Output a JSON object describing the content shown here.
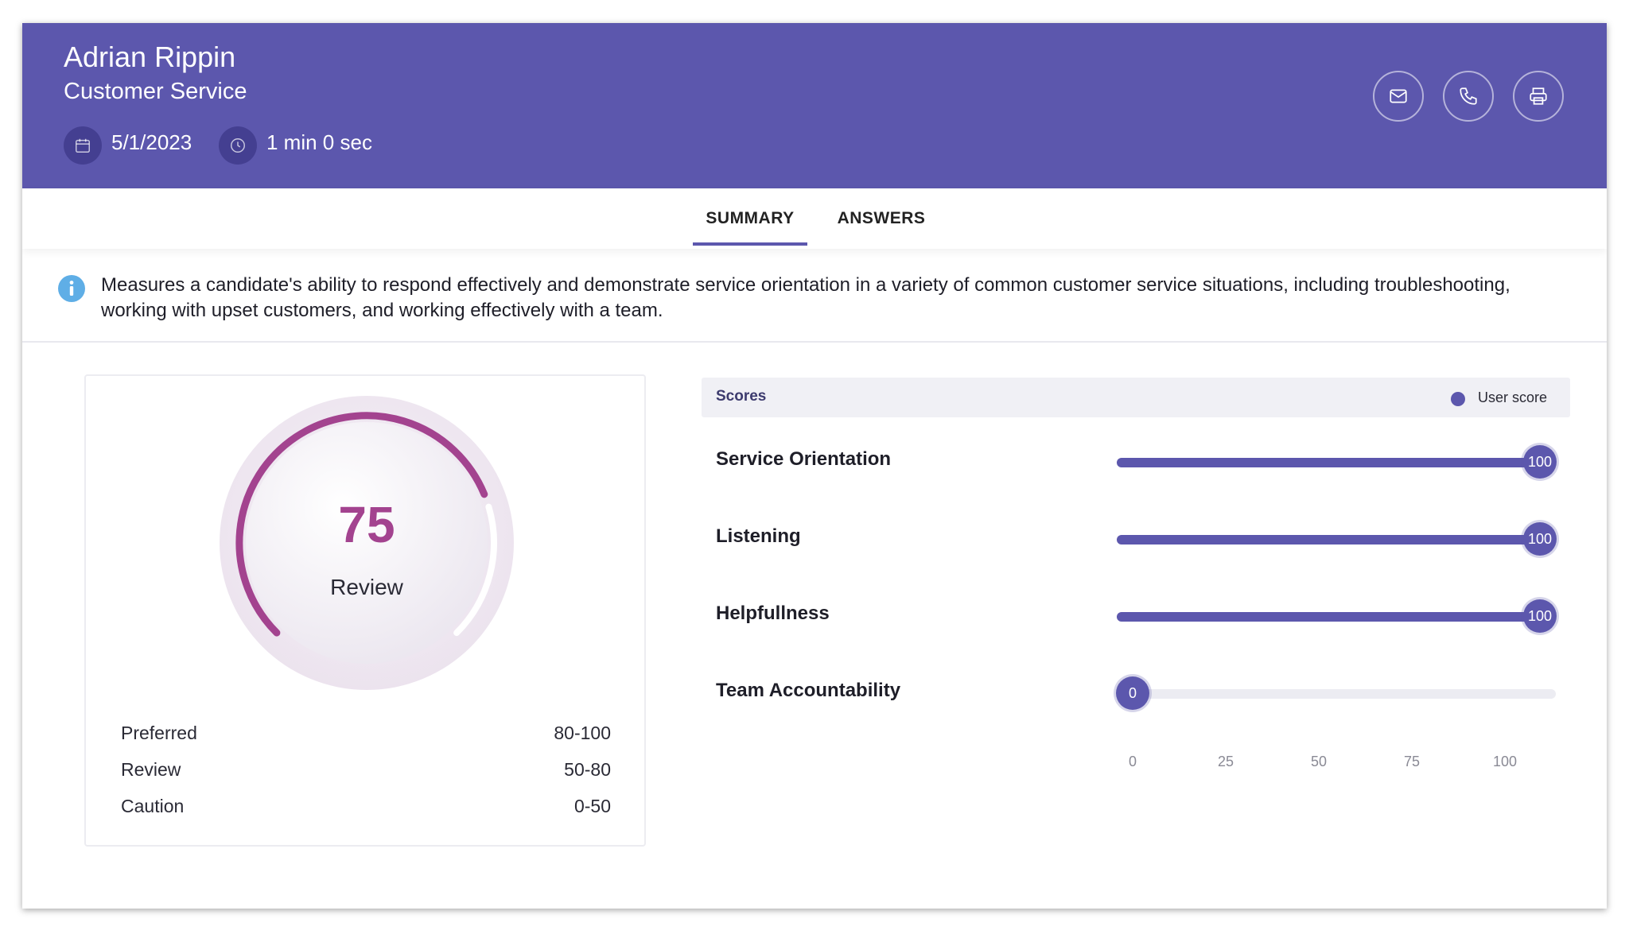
{
  "candidate": {
    "name": "Adrian Rippin",
    "assessment": "Customer Service",
    "date": "5/1/2023",
    "duration": "1 min 0 sec"
  },
  "header_actions": {
    "email_icon": "envelope-icon",
    "phone_icon": "phone-icon",
    "print_icon": "printer-icon"
  },
  "tabs": [
    {
      "label": "SUMMARY",
      "active": true
    },
    {
      "label": "ANSWERS",
      "active": false
    }
  ],
  "info": {
    "text": "Measures a candidate's ability to respond effectively and demonstrate service orientation in a variety of common customer service situations, including troubleshooting, working with upset customers, and working effectively with a team."
  },
  "gauge": {
    "value": "75",
    "label": "Review",
    "score": 75,
    "max": 100,
    "ranges": [
      {
        "label": "Preferred",
        "value": "80-100"
      },
      {
        "label": "Review",
        "value": "50-80"
      },
      {
        "label": "Caution",
        "value": "0-50"
      }
    ]
  },
  "scores": {
    "title": "Scores",
    "legend": "User score",
    "items": [
      {
        "label": "Service Orientation",
        "value": 100,
        "display": "100"
      },
      {
        "label": "Listening",
        "value": 100,
        "display": "100"
      },
      {
        "label": "Helpfullness",
        "value": 100,
        "display": "100"
      },
      {
        "label": "Team Accountability",
        "value": 0,
        "display": "0"
      }
    ],
    "axis_ticks": [
      "0",
      "25",
      "50",
      "75",
      "100"
    ]
  },
  "colors": {
    "header": "#5c57ad",
    "accent": "#5c57ad",
    "gauge_arc": "#a3438f"
  }
}
